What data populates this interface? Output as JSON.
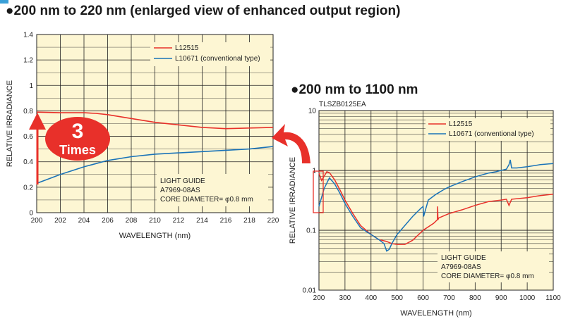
{
  "titles": {
    "chart1": "●200 nm to 220 nm (enlarged view of enhanced output region)",
    "chart2": "●200 nm to 1100 nm"
  },
  "code": "TLSZB0125EA",
  "badge": {
    "number": "3",
    "text": "Times"
  },
  "colors": {
    "red": "#e8302a",
    "blue": "#1a73b8",
    "plot_bg": "#fdf6d3",
    "grid": "#222222"
  },
  "chart_data": [
    {
      "type": "line",
      "xlabel": "WAVELENGTH (nm)",
      "ylabel": "RELATIVE IRRADIANCE",
      "xlim": [
        200,
        220
      ],
      "ylim": [
        0,
        1.4
      ],
      "x_ticks": [
        "200",
        "202",
        "204",
        "206",
        "208",
        "210",
        "212",
        "214",
        "216",
        "218",
        "220"
      ],
      "y_ticks": [
        "0",
        "0.2",
        "0.4",
        "0.6",
        "0.8",
        "1",
        "1.2",
        "1.4"
      ],
      "legend": [
        "L12515",
        "L10671 (conventional type)"
      ],
      "series": [
        {
          "name": "L12515",
          "x": [
            200,
            202,
            204,
            205,
            206,
            208,
            210,
            212,
            214,
            216,
            218,
            220
          ],
          "y": [
            0.79,
            0.785,
            0.785,
            0.78,
            0.77,
            0.74,
            0.71,
            0.69,
            0.67,
            0.66,
            0.665,
            0.67
          ]
        },
        {
          "name": "L10671 (conventional type)",
          "x": [
            200,
            202,
            204,
            206,
            208,
            210,
            212,
            214,
            216,
            218,
            220
          ],
          "y": [
            0.23,
            0.3,
            0.36,
            0.41,
            0.44,
            0.46,
            0.47,
            0.48,
            0.49,
            0.5,
            0.52
          ]
        }
      ],
      "annotation": [
        "LIGHT GUIDE",
        "A7969-08AS",
        "CORE DIAMETER= φ0.8 mm"
      ]
    },
    {
      "type": "line",
      "xlabel": "WAVELENGTH (nm)",
      "ylabel": "RELATIVE IRRADIANCE",
      "xlim": [
        200,
        1100
      ],
      "ylim": [
        0.01,
        10
      ],
      "yscale": "log",
      "x_ticks": [
        "200",
        "300",
        "400",
        "500",
        "600",
        "700",
        "800",
        "900",
        "1000",
        "1100"
      ],
      "y_ticks": [
        "0.01",
        "0.1",
        "1",
        "10"
      ],
      "legend": [
        "L12515",
        "L10671 (conventional type)"
      ],
      "series": [
        {
          "name": "L12515",
          "x": [
            200,
            210,
            220,
            230,
            240,
            260,
            280,
            300,
            330,
            360,
            400,
            430,
            460,
            480,
            500,
            530,
            560,
            600,
            640,
            655,
            656,
            657,
            660,
            700,
            750,
            800,
            850,
            900,
            920,
            930,
            940,
            1000,
            1050,
            1100
          ],
          "y": [
            0.9,
            0.68,
            0.8,
            0.95,
            0.92,
            0.7,
            0.48,
            0.32,
            0.19,
            0.12,
            0.085,
            0.07,
            0.065,
            0.06,
            0.058,
            0.058,
            0.068,
            0.1,
            0.13,
            0.15,
            0.25,
            0.15,
            0.16,
            0.19,
            0.22,
            0.26,
            0.3,
            0.32,
            0.33,
            0.26,
            0.33,
            0.35,
            0.38,
            0.4
          ]
        },
        {
          "name": "L10671 (conventional type)",
          "x": [
            200,
            220,
            240,
            260,
            280,
            300,
            330,
            360,
            400,
            430,
            450,
            460,
            470,
            480,
            500,
            530,
            560,
            590,
            600,
            602,
            620,
            650,
            680,
            700,
            750,
            800,
            850,
            880,
            900,
            920,
            930,
            935,
            940,
            960,
            1000,
            1050,
            1100
          ],
          "y": [
            0.25,
            0.5,
            0.75,
            0.6,
            0.42,
            0.28,
            0.17,
            0.11,
            0.085,
            0.07,
            0.06,
            0.045,
            0.048,
            0.06,
            0.085,
            0.12,
            0.17,
            0.23,
            0.25,
            0.17,
            0.32,
            0.4,
            0.48,
            0.53,
            0.65,
            0.78,
            0.9,
            0.95,
            1.0,
            1.05,
            1.25,
            1.5,
            1.1,
            1.1,
            1.15,
            1.25,
            1.3
          ]
        }
      ],
      "annotation": [
        "LIGHT GUIDE",
        "A7969-08AS",
        "CORE DIAMETER= φ0.8 mm"
      ]
    }
  ]
}
